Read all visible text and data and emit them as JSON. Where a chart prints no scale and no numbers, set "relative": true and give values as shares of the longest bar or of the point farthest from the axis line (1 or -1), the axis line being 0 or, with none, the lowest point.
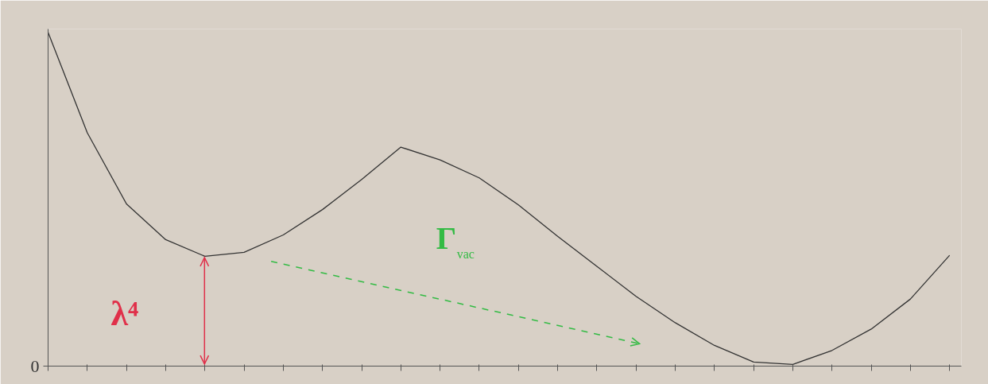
{
  "chart_data": {
    "type": "line",
    "relative": true,
    "grid": false,
    "marker": "none",
    "line_style": "solid",
    "categories": [
      null,
      null,
      null,
      null,
      null,
      null,
      null,
      null,
      null,
      null,
      null,
      null,
      null,
      null,
      null,
      null,
      null,
      null,
      null,
      null,
      null,
      null,
      null,
      null
    ],
    "series": [
      {
        "color": "#333333",
        "values": [
          1,
          0.699,
          0.486,
          0.379,
          0.329,
          0.341,
          0.393,
          0.469,
          0.559,
          0.656,
          0.618,
          0.564,
          0.483,
          0.389,
          0.299,
          0.209,
          0.13,
          0.062,
          0.012,
          0.005,
          0.047,
          0.111,
          0.201,
          0.332
        ]
      }
    ],
    "annotations": [
      "0",
      "λ⁴",
      "Γ$_{vac}$"
    ]
  }
}
